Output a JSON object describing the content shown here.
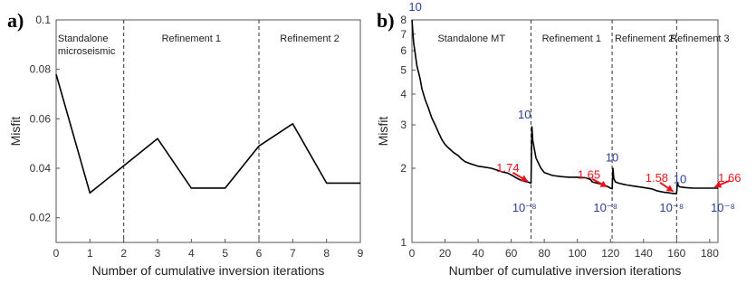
{
  "colors": {
    "line": "#000000",
    "red": "#e8141b",
    "blue": "#2b3e9a",
    "axis": "#555555",
    "divider": "#333333"
  },
  "chart_data": [
    {
      "type": "line",
      "panel_label": "a)",
      "xlabel": "Number of cumulative inversion iterations",
      "ylabel": "Misfit",
      "xlim": [
        0,
        9
      ],
      "ylim": [
        0.01,
        0.1
      ],
      "x_ticks": [
        0,
        1,
        2,
        3,
        4,
        5,
        6,
        7,
        8,
        9
      ],
      "x_tick_labels": [
        "0",
        "1",
        "2",
        "3",
        "4",
        "5",
        "6",
        "7",
        "8",
        "9"
      ],
      "y_ticks": [
        0.02,
        0.04,
        0.06,
        0.08,
        0.1
      ],
      "y_tick_labels": [
        "0.02",
        "0.04",
        "0.06",
        "0.08",
        "0.1"
      ],
      "series": [
        {
          "x": [
            0,
            1,
            2,
            3,
            4,
            5,
            6,
            7,
            8,
            9
          ],
          "y": [
            0.078,
            0.03,
            0.041,
            0.052,
            0.032,
            0.032,
            0.049,
            0.058,
            0.034,
            0.034
          ]
        }
      ],
      "dividers": [
        2,
        6
      ],
      "regions": [
        {
          "lines": [
            "Standalone",
            "microseismic"
          ],
          "x": 0.05,
          "align": "start"
        },
        {
          "lines": [
            "Refinement 1"
          ],
          "x": 4,
          "align": "middle"
        },
        {
          "lines": [
            "Refinement 2"
          ],
          "x": 7.5,
          "align": "middle"
        }
      ]
    },
    {
      "type": "line",
      "panel_label": "b)",
      "xlabel": "Number of cumulative inversion iterations",
      "ylabel": "Misfit",
      "yscale": "log",
      "xlim": [
        0,
        185
      ],
      "ylim": [
        1,
        8
      ],
      "x_ticks": [
        0,
        20,
        40,
        60,
        80,
        100,
        120,
        140,
        160,
        180
      ],
      "x_tick_labels": [
        "0",
        "20",
        "40",
        "60",
        "80",
        "100",
        "120",
        "140",
        "160",
        "180"
      ],
      "y_ticks": [
        1,
        2,
        3,
        4,
        5,
        6,
        7,
        8
      ],
      "y_tick_labels": [
        "1",
        "2",
        "3",
        "4",
        "5",
        "6",
        "7",
        "8"
      ],
      "series": [
        {
          "x": [
            0,
            1,
            2,
            3,
            4,
            5,
            6,
            8,
            10,
            12,
            14,
            16,
            18,
            20,
            22,
            25,
            28,
            30,
            32,
            35,
            38,
            40,
            44,
            48,
            52,
            55,
            58,
            60,
            63,
            65,
            68,
            70,
            72,
            72.5,
            73,
            75,
            78,
            80,
            85,
            90,
            95,
            100,
            105,
            108,
            109,
            112,
            115,
            118,
            120,
            121,
            121.5,
            122,
            123,
            125,
            128,
            130,
            135,
            140,
            145,
            148,
            150,
            152,
            155,
            158,
            160,
            160.5,
            161,
            162,
            165,
            170,
            175,
            180,
            185
          ],
          "y": [
            8.0,
            6.5,
            5.8,
            5.2,
            4.9,
            4.6,
            4.2,
            3.8,
            3.5,
            3.2,
            3.0,
            2.8,
            2.62,
            2.5,
            2.42,
            2.32,
            2.25,
            2.18,
            2.13,
            2.09,
            2.06,
            2.04,
            2.02,
            2.0,
            1.96,
            1.93,
            1.91,
            1.88,
            1.83,
            1.8,
            1.77,
            1.76,
            1.74,
            2.95,
            2.6,
            2.2,
            2.0,
            1.92,
            1.87,
            1.85,
            1.84,
            1.84,
            1.83,
            1.8,
            1.76,
            1.74,
            1.72,
            1.69,
            1.66,
            1.65,
            2.0,
            1.82,
            1.76,
            1.74,
            1.72,
            1.71,
            1.69,
            1.67,
            1.65,
            1.62,
            1.61,
            1.6,
            1.59,
            1.58,
            1.58,
            1.75,
            1.7,
            1.68,
            1.67,
            1.66,
            1.66,
            1.66,
            1.66
          ]
        }
      ],
      "dividers": [
        72,
        121,
        160
      ],
      "regions": [
        {
          "lines": [
            "Standalone MT"
          ],
          "x": 36,
          "align": "middle"
        },
        {
          "lines": [
            "Refinement 1"
          ],
          "x": 96.5,
          "align": "middle"
        },
        {
          "lines": [
            "Refinement 2"
          ],
          "x": 140.5,
          "align": "middle"
        },
        {
          "lines": [
            "Refinement 3"
          ],
          "x": 174,
          "align": "middle"
        }
      ],
      "annotations": [
        {
          "text": "10",
          "color": "blue",
          "x": 2,
          "y": 9.0
        },
        {
          "text": "10",
          "color": "blue",
          "x": 68,
          "y": 3.3
        },
        {
          "text": "1.74",
          "color": "red",
          "x": 58,
          "y": 2.0
        },
        {
          "text": "10⁻⁸",
          "color": "blue",
          "x": 68,
          "y": 1.38
        },
        {
          "text": "10",
          "color": "blue",
          "x": 121,
          "y": 2.2
        },
        {
          "text": "1.65",
          "color": "red",
          "x": 107,
          "y": 1.88
        },
        {
          "text": "10⁻⁸",
          "color": "blue",
          "x": 117,
          "y": 1.38
        },
        {
          "text": "10",
          "color": "blue",
          "x": 162,
          "y": 1.8
        },
        {
          "text": "1.58",
          "color": "red",
          "x": 148,
          "y": 1.82
        },
        {
          "text": "10⁻⁸",
          "color": "blue",
          "x": 157,
          "y": 1.38
        },
        {
          "text": "1.66",
          "color": "red",
          "x": 192,
          "y": 1.82
        },
        {
          "text": "10⁻⁸",
          "color": "blue",
          "x": 188,
          "y": 1.38
        }
      ],
      "arrows": [
        {
          "from": [
            61,
            1.92
          ],
          "to": [
            70,
            1.77
          ]
        },
        {
          "from": [
            109,
            1.81
          ],
          "to": [
            118,
            1.68
          ]
        },
        {
          "from": [
            150,
            1.75
          ],
          "to": [
            158,
            1.61
          ]
        },
        {
          "from": [
            192,
            1.78
          ],
          "to": [
            183,
            1.68
          ]
        }
      ]
    }
  ]
}
